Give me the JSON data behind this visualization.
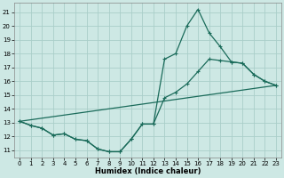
{
  "xlabel": "Humidex (Indice chaleur)",
  "xlim": [
    -0.5,
    23.5
  ],
  "ylim": [
    10.5,
    21.7
  ],
  "yticks": [
    11,
    12,
    13,
    14,
    15,
    16,
    17,
    18,
    19,
    20,
    21
  ],
  "xticks": [
    0,
    1,
    2,
    3,
    4,
    5,
    6,
    7,
    8,
    9,
    10,
    11,
    12,
    13,
    14,
    15,
    16,
    17,
    18,
    19,
    20,
    21,
    22,
    23
  ],
  "bg_color": "#cde8e4",
  "grid_color": "#aacec9",
  "line_color": "#1a6b5a",
  "curve1_x": [
    0,
    1,
    2,
    3,
    4,
    5,
    6,
    7,
    8,
    9,
    10,
    11,
    12,
    13,
    14,
    15,
    16,
    17,
    18,
    19,
    20,
    21,
    22,
    23
  ],
  "curve1_y": [
    13.1,
    12.8,
    12.6,
    12.1,
    12.2,
    11.8,
    11.7,
    11.1,
    10.9,
    10.9,
    11.8,
    12.9,
    12.9,
    17.6,
    18.0,
    20.0,
    21.2,
    19.5,
    18.5,
    17.4,
    17.3,
    16.5,
    16.0,
    15.7
  ],
  "curve2_x": [
    0,
    1,
    2,
    3,
    4,
    5,
    6,
    7,
    8,
    9,
    10,
    11,
    12,
    13,
    14,
    15,
    16,
    17,
    18,
    19,
    20,
    21,
    22,
    23
  ],
  "curve2_y": [
    13.1,
    12.8,
    12.6,
    12.1,
    12.2,
    11.8,
    11.7,
    11.1,
    10.9,
    10.9,
    11.8,
    12.9,
    12.9,
    14.8,
    15.2,
    15.8,
    16.7,
    17.6,
    17.5,
    17.4,
    17.3,
    16.5,
    16.0,
    15.7
  ],
  "line_x": [
    0,
    23
  ],
  "line_y": [
    13.1,
    15.7
  ]
}
